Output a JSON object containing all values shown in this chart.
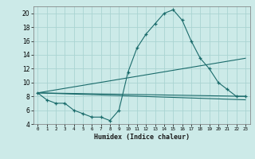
{
  "xlabel": "Humidex (Indice chaleur)",
  "background_color": "#cceae8",
  "grid_color": "#aad4d2",
  "line_color": "#1a6b6b",
  "xlim": [
    -0.5,
    23.5
  ],
  "ylim": [
    4,
    21
  ],
  "xticks": [
    0,
    1,
    2,
    3,
    4,
    5,
    6,
    7,
    8,
    9,
    10,
    11,
    12,
    13,
    14,
    15,
    16,
    17,
    18,
    19,
    20,
    21,
    22,
    23
  ],
  "yticks": [
    4,
    6,
    8,
    10,
    12,
    14,
    16,
    18,
    20
  ],
  "series1_x": [
    0,
    1,
    2,
    3,
    4,
    5,
    6,
    7,
    8,
    9,
    10,
    11,
    12,
    13,
    14,
    15,
    16,
    17,
    18,
    19,
    20,
    21,
    22,
    23
  ],
  "series1_y": [
    8.5,
    7.5,
    7.0,
    7.0,
    6.0,
    5.5,
    5.0,
    5.0,
    4.5,
    6.0,
    11.5,
    15.0,
    17.0,
    18.5,
    20.0,
    20.5,
    19.0,
    16.0,
    13.5,
    12.0,
    10.0,
    9.0,
    8.0,
    8.0
  ],
  "series2_x": [
    0,
    23
  ],
  "series2_y": [
    8.5,
    8.0
  ],
  "series3_x": [
    0,
    23
  ],
  "series3_y": [
    8.5,
    13.5
  ],
  "series4_x": [
    0,
    23
  ],
  "series4_y": [
    8.5,
    7.5
  ]
}
